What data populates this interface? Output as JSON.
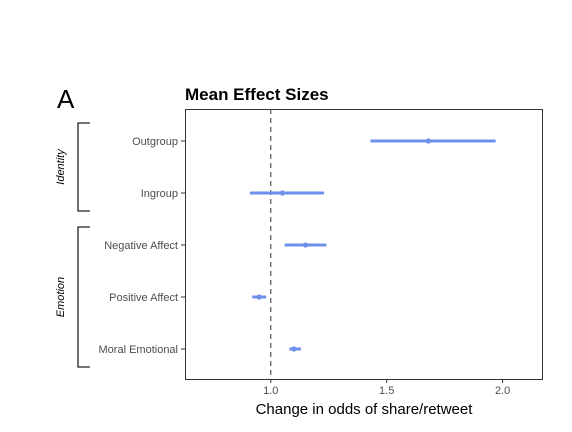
{
  "panel_label": "A",
  "chart_data": {
    "type": "forest",
    "title": "Mean Effect Sizes",
    "xlabel": "Change in odds of share/retweet",
    "ylabel": "",
    "xlim": [
      0.63,
      2.17
    ],
    "xticks": [
      1.0,
      1.5,
      2.0
    ],
    "xtick_labels": [
      "1.0",
      "1.5",
      "2.0"
    ],
    "reference_line": 1.0,
    "grid": false,
    "color": "#6e8fea",
    "categories": [
      "Outgroup",
      "Ingroup",
      "Negative Affect",
      "Positive Affect",
      "Moral Emotional"
    ],
    "estimates": [
      1.68,
      1.05,
      1.15,
      0.95,
      1.1
    ],
    "ci_low": [
      1.43,
      0.91,
      1.06,
      0.92,
      1.08
    ],
    "ci_high": [
      1.97,
      1.23,
      1.24,
      0.98,
      1.13
    ],
    "groups": [
      {
        "label": "Identity",
        "members": [
          "Outgroup",
          "Ingroup"
        ]
      },
      {
        "label": "Emotion",
        "members": [
          "Negative Affect",
          "Positive Affect",
          "Moral Emotional"
        ]
      }
    ]
  }
}
